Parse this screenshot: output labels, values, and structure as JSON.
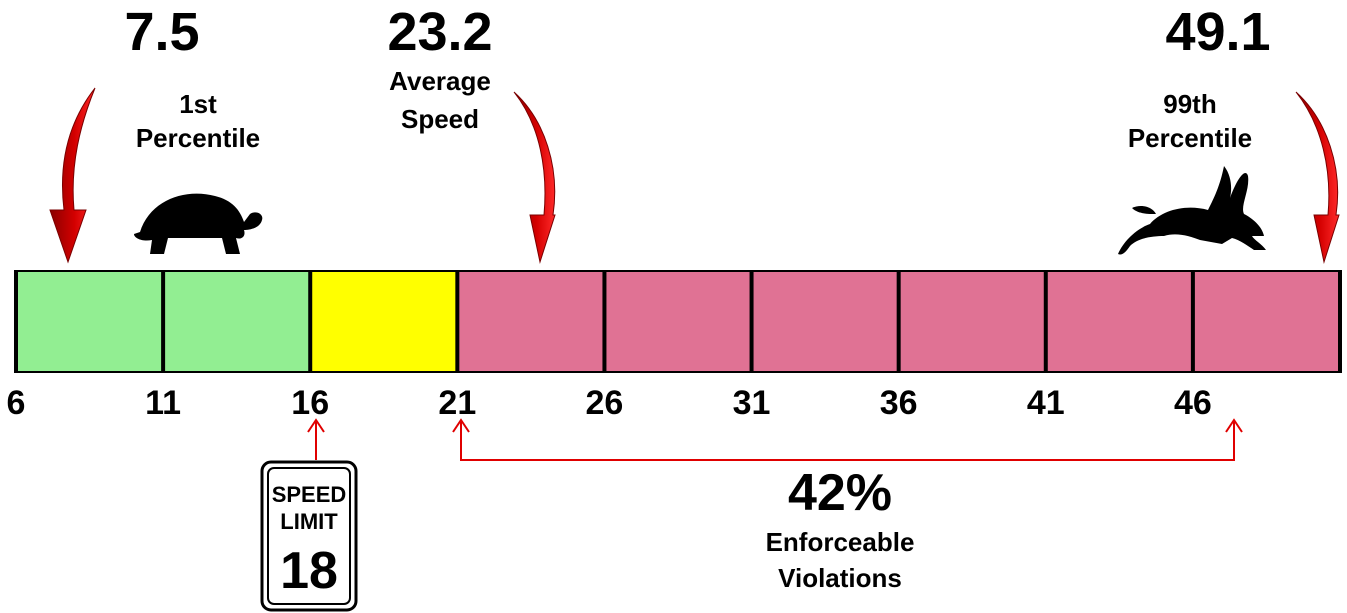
{
  "markers": {
    "p1": {
      "value": "7.5",
      "label_line1": "1st",
      "label_line2": "Percentile"
    },
    "avg": {
      "value": "23.2",
      "label_line1": "Average",
      "label_line2": "Speed"
    },
    "p99": {
      "value": "49.1",
      "label_line1": "99th",
      "label_line2": "Percentile"
    }
  },
  "scale": {
    "ticks": [
      "6",
      "11",
      "16",
      "21",
      "26",
      "31",
      "36",
      "41",
      "46"
    ],
    "segments": [
      {
        "from": 6,
        "to": 11,
        "color": "#92ee92",
        "zone": "below-limit"
      },
      {
        "from": 11,
        "to": 16,
        "color": "#92ee92",
        "zone": "below-limit"
      },
      {
        "from": 16,
        "to": 21,
        "color": "#ffff00",
        "zone": "tolerance"
      },
      {
        "from": 21,
        "to": 26,
        "color": "#e07294",
        "zone": "enforceable"
      },
      {
        "from": 26,
        "to": 31,
        "color": "#e07294",
        "zone": "enforceable"
      },
      {
        "from": 31,
        "to": 36,
        "color": "#e07294",
        "zone": "enforceable"
      },
      {
        "from": 36,
        "to": 41,
        "color": "#e07294",
        "zone": "enforceable"
      },
      {
        "from": 41,
        "to": 46,
        "color": "#e07294",
        "zone": "enforceable"
      },
      {
        "from": 46,
        "to": 51,
        "color": "#e07294",
        "zone": "enforceable"
      }
    ]
  },
  "sign": {
    "line1": "SPEED",
    "line2": "LIMIT",
    "value": "18"
  },
  "violations": {
    "percent": "42%",
    "line1": "Enforceable",
    "line2": "Violations"
  },
  "icons": {
    "slow": "turtle-icon",
    "fast": "rabbit-icon"
  },
  "colors": {
    "arrow": "#cc0000",
    "bracket": "#e00000",
    "green": "#92ee92",
    "yellow": "#ffff00",
    "pink": "#e07294"
  }
}
